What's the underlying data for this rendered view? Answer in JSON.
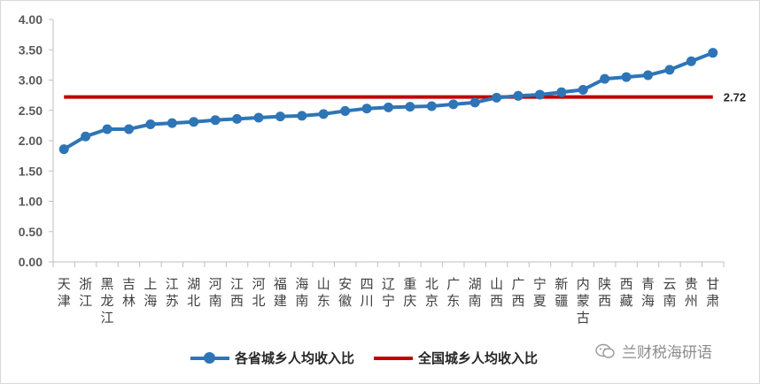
{
  "chart_data": {
    "type": "line",
    "categories": [
      "天津",
      "浙江",
      "黑龙江",
      "吉林",
      "上海",
      "江苏",
      "湖北",
      "河南",
      "江西",
      "河北",
      "福建",
      "海南",
      "山东",
      "安徽",
      "四川",
      "辽宁",
      "重庆",
      "北京",
      "广东",
      "湖南",
      "山西",
      "广西",
      "宁夏",
      "新疆",
      "内蒙古",
      "陕西",
      "西藏",
      "青海",
      "云南",
      "贵州",
      "甘肃"
    ],
    "series": [
      {
        "name": "各省城乡人均收入比",
        "color": "#2e75b6",
        "values": [
          1.86,
          2.07,
          2.19,
          2.19,
          2.27,
          2.29,
          2.31,
          2.34,
          2.36,
          2.38,
          2.4,
          2.41,
          2.44,
          2.49,
          2.53,
          2.55,
          2.56,
          2.57,
          2.6,
          2.63,
          2.71,
          2.74,
          2.76,
          2.8,
          2.84,
          3.02,
          3.05,
          3.08,
          3.17,
          3.31,
          3.45
        ]
      },
      {
        "name": "全国城乡人均收入比",
        "color": "#c00000",
        "value": 2.72,
        "label": "2.72"
      }
    ],
    "ylim": [
      0,
      4
    ],
    "yticks": [
      "0.00",
      "0.50",
      "1.00",
      "1.50",
      "2.00",
      "2.50",
      "3.00",
      "3.50",
      "4.00"
    ],
    "grid": false,
    "legend": "bottom"
  },
  "watermark": {
    "text": "兰财税海研语"
  }
}
